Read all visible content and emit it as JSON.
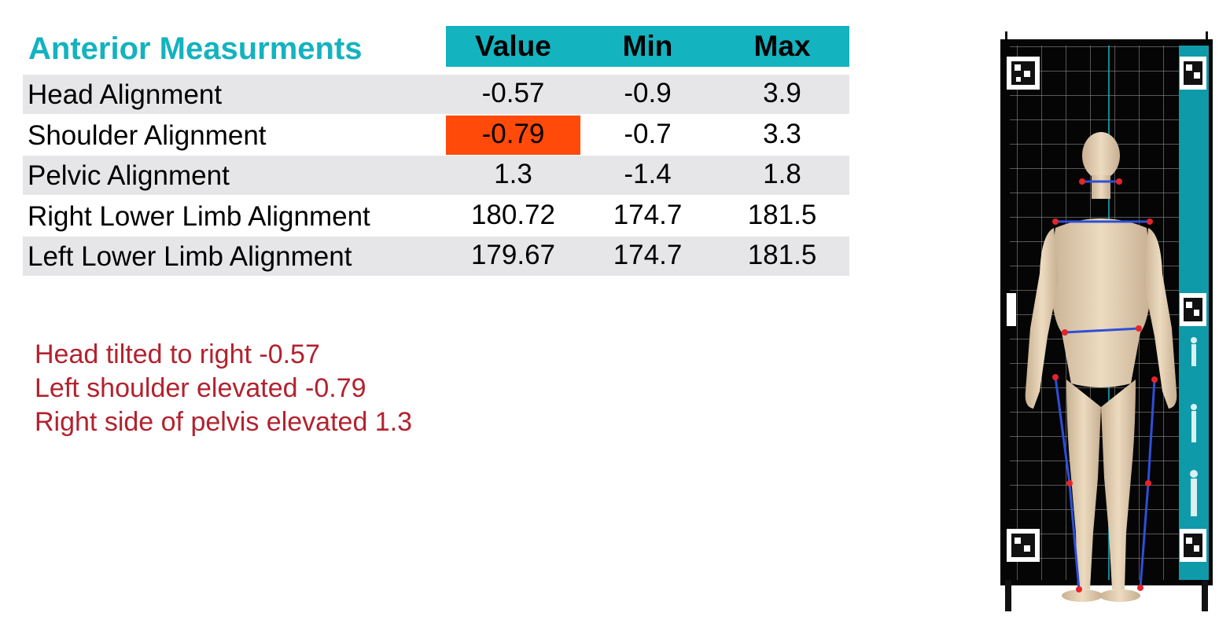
{
  "title": "Anterior Measurments",
  "table": {
    "headers": {
      "value": "Value",
      "min": "Min",
      "max": "Max"
    },
    "rows": [
      {
        "label": "Head Alignment",
        "value": "-0.57",
        "min": "-0.9",
        "max": "3.9",
        "flag": false
      },
      {
        "label": "Shoulder Alignment",
        "value": "-0.79",
        "min": "-0.7",
        "max": "3.3",
        "flag": true
      },
      {
        "label": "Pelvic Alignment",
        "value": "1.3",
        "min": "-1.4",
        "max": "1.8",
        "flag": false
      },
      {
        "label": "Right Lower Limb Alignment",
        "value": "180.72",
        "min": "174.7",
        "max": "181.5",
        "flag": false
      },
      {
        "label": "Left Lower Limb Alignment",
        "value": "179.67",
        "min": "174.7",
        "max": "181.5",
        "flag": false
      }
    ]
  },
  "notes": [
    "Head tilted to right -0.57",
    "Left shoulder elevated -0.79",
    "Right side of pelvis elevated 1.3"
  ],
  "colors": {
    "accent": "#13b3bf",
    "row_shade": "#e6e6e8",
    "flag": "#ff4a0a",
    "note_text": "#b2222e",
    "body_skin": "#e6d2b4",
    "landmark_point": "#e5242b",
    "alignment_line": "#2d4fd8"
  }
}
